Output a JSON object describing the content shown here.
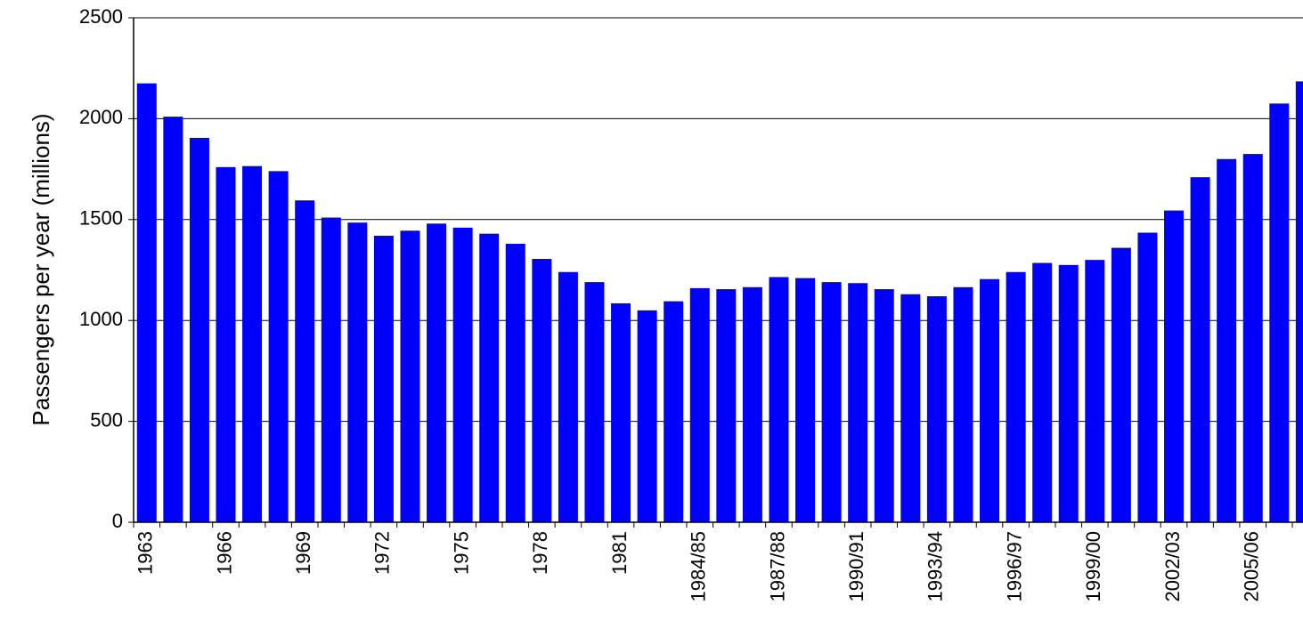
{
  "chart_data": {
    "type": "bar",
    "y_label": "Passengers per year (millions)",
    "categories": [
      "1963",
      null,
      null,
      "1966",
      null,
      null,
      "1969",
      null,
      null,
      "1972",
      null,
      null,
      "1975",
      null,
      null,
      "1978",
      null,
      null,
      "1981",
      null,
      null,
      "1984/85",
      null,
      null,
      "1987/88",
      null,
      null,
      "1990/91",
      null,
      null,
      "1993/94",
      null,
      null,
      "1996/97",
      null,
      null,
      "1999/00",
      null,
      null,
      "2002/03",
      null,
      null,
      "2005/06",
      null,
      null
    ],
    "values": [
      2175,
      2010,
      1905,
      1760,
      1765,
      1740,
      1595,
      1510,
      1485,
      1420,
      1445,
      1480,
      1460,
      1430,
      1380,
      1305,
      1240,
      1190,
      1085,
      1050,
      1095,
      1160,
      1155,
      1165,
      1215,
      1210,
      1190,
      1185,
      1155,
      1130,
      1120,
      1165,
      1205,
      1240,
      1285,
      1275,
      1300,
      1360,
      1435,
      1545,
      1710,
      1800,
      1825,
      2075,
      2185
    ],
    "color": "#0000ff",
    "ylim": [
      0,
      2500
    ],
    "yticks": [
      0,
      500,
      1000,
      1500,
      2000,
      2500
    ],
    "grid": true
  }
}
